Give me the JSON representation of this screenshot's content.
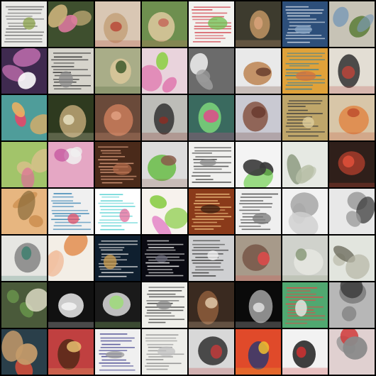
{
  "grid": {
    "rows": 8,
    "columns": 8,
    "background_color": "#000000",
    "tiles": [
      {
        "kind": "document",
        "bg": "#e9e9e6",
        "accent": "#6a6a6a",
        "figure": "#8aa24a"
      },
      {
        "kind": "blob",
        "bg": "#3e4f2e",
        "accent": "#e17aa2",
        "figure": "#c9b07a"
      },
      {
        "kind": "figure",
        "bg": "#d9c7b4",
        "accent": "#b84a3a",
        "figure": "#c4a37d"
      },
      {
        "kind": "figure",
        "bg": "#6e8f4f",
        "accent": "#c46a5b",
        "figure": "#d8c79a"
      },
      {
        "kind": "document",
        "bg": "#f2f2ef",
        "accent": "#d0404a",
        "figure": "#6fbf4f"
      },
      {
        "kind": "figure",
        "bg": "#3d3b2e",
        "accent": "#d8a27a",
        "figure": "#b89060"
      },
      {
        "kind": "document",
        "bg": "#2d4f7a",
        "accent": "#e8eef4",
        "figure": "#8aa7c6"
      },
      {
        "kind": "blob",
        "bg": "#c7c3b6",
        "accent": "#5f7f3e",
        "figure": "#7a9ab6"
      },
      {
        "kind": "blob",
        "bg": "#3f2a4f",
        "accent": "#ffffff",
        "figure": "#b86aa8"
      },
      {
        "kind": "document",
        "bg": "#d6d4cc",
        "accent": "#2e2e2e",
        "figure": "#8a8a8a"
      },
      {
        "kind": "figure",
        "bg": "#a9ad88",
        "accent": "#3f5a2b",
        "figure": "#d8c79a"
      },
      {
        "kind": "blob",
        "bg": "#e9d3dc",
        "accent": "#8fd04a",
        "figure": "#e07ab0"
      },
      {
        "kind": "blob",
        "bg": "#6b6b6b",
        "accent": "#e8e8e8",
        "figure": "#9a9a9a"
      },
      {
        "kind": "figure",
        "bg": "#e9e9e9",
        "accent": "#6a3e2e",
        "figure": "#c08a5a"
      },
      {
        "kind": "document",
        "bg": "#e0a23a",
        "accent": "#2f7fa0",
        "figure": "#d07040"
      },
      {
        "kind": "figure",
        "bg": "#e3ded4",
        "accent": "#b8443a",
        "figure": "#3a3a3a"
      },
      {
        "kind": "blob",
        "bg": "#4f9d9a",
        "accent": "#e04a6a",
        "figure": "#f0b060"
      },
      {
        "kind": "figure",
        "bg": "#2e3a1f",
        "accent": "#e8e0c2",
        "figure": "#b6a070"
      },
      {
        "kind": "figure",
        "bg": "#6a4a3a",
        "accent": "#e0a080",
        "figure": "#c47a5a"
      },
      {
        "kind": "figure",
        "bg": "#bdbdb8",
        "accent": "#8a2e24",
        "figure": "#3a3a3a"
      },
      {
        "kind": "figure",
        "bg": "#3a6a5f",
        "accent": "#e04a8a",
        "figure": "#7ad07a"
      },
      {
        "kind": "figure",
        "bg": "#c9c9d2",
        "accent": "#6a3a2e",
        "figure": "#8a5a4a"
      },
      {
        "kind": "document",
        "bg": "#bfa66a",
        "accent": "#3a3a3a",
        "figure": "#e0d0a0"
      },
      {
        "kind": "figure",
        "bg": "#d8c6a8",
        "accent": "#c0502e",
        "figure": "#e08a4a"
      },
      {
        "kind": "blob",
        "bg": "#a2c46a",
        "accent": "#e06a9a",
        "figure": "#d8c08a"
      },
      {
        "kind": "blob",
        "bg": "#e5a7c4",
        "accent": "#c04a9a",
        "figure": "#f0f0f0"
      },
      {
        "kind": "document",
        "bg": "#4a2a1a",
        "accent": "#e0a080",
        "figure": "#b06a4a"
      },
      {
        "kind": "figure",
        "bg": "#dcdcdc",
        "accent": "#8a5a4a",
        "figure": "#6fbf4f"
      },
      {
        "kind": "document",
        "bg": "#f0f0ee",
        "accent": "#3a3a3a",
        "figure": "#8a8a8a"
      },
      {
        "kind": "blob",
        "bg": "#f4f4f4",
        "accent": "#6fcf4f",
        "figure": "#3a3a3a"
      },
      {
        "kind": "blob",
        "bg": "#e6e9e3",
        "accent": "#7a8a6a",
        "figure": "#b8c0a8"
      },
      {
        "kind": "figure",
        "bg": "#2f1f1a",
        "accent": "#e0503a",
        "figure": "#a03a2a"
      },
      {
        "kind": "blob",
        "bg": "#e7b680",
        "accent": "#8a6a3a",
        "figure": "#c98a4a"
      },
      {
        "kind": "document",
        "bg": "#f0f0f0",
        "accent": "#2f7fb0",
        "figure": "#e0506a"
      },
      {
        "kind": "document",
        "bg": "#ffffff",
        "accent": "#4fcfd0",
        "figure": "#e06a9a"
      },
      {
        "kind": "blob",
        "bg": "#f7f2ed",
        "accent": "#e070c0",
        "figure": "#8fcf4f"
      },
      {
        "kind": "document",
        "bg": "#8a3a1a",
        "accent": "#f0c080",
        "figure": "#3a1f10"
      },
      {
        "kind": "document",
        "bg": "#efefef",
        "accent": "#3a3a3a",
        "figure": "#7a7a7a"
      },
      {
        "kind": "blob",
        "bg": "#f2f2f2",
        "accent": "#9a9a9a",
        "figure": "#d0d0d0"
      },
      {
        "kind": "blob",
        "bg": "#e8e8e8",
        "accent": "#3a3a3a",
        "figure": "#9a9a9a"
      },
      {
        "kind": "figure",
        "bg": "#e6e6e2",
        "accent": "#3f7f6f",
        "figure": "#8a8a8a"
      },
      {
        "kind": "blob",
        "bg": "#f3eee6",
        "accent": "#e0803a",
        "figure": "#f0c0a0"
      },
      {
        "kind": "document",
        "bg": "#0f1f2f",
        "accent": "#e8e8e8",
        "figure": "#d0a050"
      },
      {
        "kind": "document",
        "bg": "#0a0a12",
        "accent": "#f0f0f0",
        "figure": "#6a6a7a"
      },
      {
        "kind": "document",
        "bg": "#cfd0d2",
        "accent": "#3a3a3a",
        "figure": "#f0f0f0"
      },
      {
        "kind": "figure",
        "bg": "#a79a8a",
        "accent": "#e04a4a",
        "figure": "#7a5a4a"
      },
      {
        "kind": "figure",
        "bg": "#d0d2cc",
        "accent": "#8a9a7a",
        "figure": "#e4e6e0"
      },
      {
        "kind": "blob",
        "bg": "#e2e5de",
        "accent": "#6a6a5a",
        "figure": "#b8b8a8"
      },
      {
        "kind": "blob",
        "bg": "#4a5a3a",
        "accent": "#e8e4d0",
        "figure": "#6fa04f"
      },
      {
        "kind": "figure",
        "bg": "#111111",
        "accent": "#f5f5f5",
        "figure": "#e0e0e0"
      },
      {
        "kind": "figure",
        "bg": "#1a1a1a",
        "accent": "#9fdc7a",
        "figure": "#d0d0d0"
      },
      {
        "kind": "document",
        "bg": "#efefea",
        "accent": "#3a3a3a",
        "figure": "#8a8a8a"
      },
      {
        "kind": "figure",
        "bg": "#3a2a20",
        "accent": "#e0c8a8",
        "figure": "#8a5a3a"
      },
      {
        "kind": "figure",
        "bg": "#0a0a0a",
        "accent": "#e0e0e0",
        "figure": "#9a9a9a"
      },
      {
        "kind": "document",
        "bg": "#50a870",
        "accent": "#e04a4a",
        "figure": "#f0f0f0"
      },
      {
        "kind": "blob",
        "bg": "#b7b7b7",
        "accent": "#3a3a3a",
        "figure": "#7a7a7a"
      },
      {
        "kind": "blob",
        "bg": "#2a3f4a",
        "accent": "#e0503a",
        "figure": "#c49a6a"
      },
      {
        "kind": "figure",
        "bg": "#c04040",
        "accent": "#e8c070",
        "figure": "#5a2a1a"
      },
      {
        "kind": "document",
        "bg": "#f0f0f0",
        "accent": "#3a3a8a",
        "figure": "#9a9a9a"
      },
      {
        "kind": "document",
        "bg": "#eeeeea",
        "accent": "#8a8a8a",
        "figure": "#c0c0c0"
      },
      {
        "kind": "figure",
        "bg": "#d8d8d8",
        "accent": "#c03a3a",
        "figure": "#3a3a3a"
      },
      {
        "kind": "figure",
        "bg": "#e04a2a",
        "accent": "#f0c030",
        "figure": "#3a3a6a"
      },
      {
        "kind": "figure",
        "bg": "#f2f2f2",
        "accent": "#d03030",
        "figure": "#2a2a2a"
      },
      {
        "kind": "blob",
        "bg": "#e0d0d0",
        "accent": "#d03a3a",
        "figure": "#8a8a8a"
      }
    ]
  }
}
